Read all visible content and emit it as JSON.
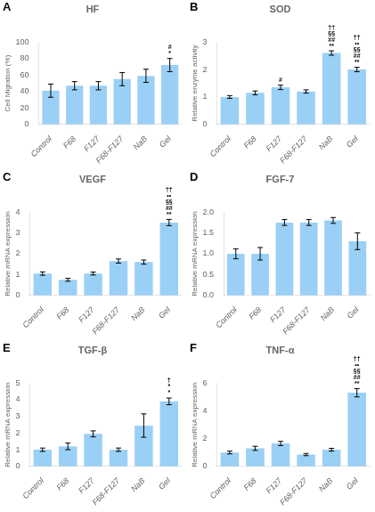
{
  "chart_data": [
    {
      "type": "bar",
      "panel_label": "A",
      "title": "HF",
      "ylabel": "Cell Migration (%)",
      "categories": [
        "Control",
        "F68",
        "F127",
        "F68-F127",
        "NaB",
        "Gel"
      ],
      "values": [
        41,
        47,
        47,
        55,
        59,
        72
      ],
      "errors": [
        8,
        5,
        5,
        8,
        8,
        8
      ],
      "ylim": [
        0,
        100
      ],
      "yticks": [
        0,
        20,
        40,
        60,
        80,
        100
      ],
      "grid": false,
      "annotations": [
        {
          "category": "Gel",
          "text": "#\n*"
        }
      ]
    },
    {
      "type": "bar",
      "panel_label": "B",
      "title": "SOD",
      "ylabel": "Relative enzyme activity",
      "categories": [
        "Control",
        "F68",
        "F127",
        "F68-F127",
        "NaB",
        "Gel"
      ],
      "values": [
        1.0,
        1.15,
        1.35,
        1.2,
        2.6,
        2.0
      ],
      "errors": [
        0.05,
        0.07,
        0.08,
        0.06,
        0.08,
        0.08
      ],
      "ylim": [
        0,
        3
      ],
      "yticks": [
        0,
        1,
        2,
        3
      ],
      "grid": false,
      "annotations": [
        {
          "category": "F127",
          "text": "#"
        },
        {
          "category": "NaB",
          "text": "††\n§§\n##\n**"
        },
        {
          "category": "Gel",
          "text": "††\n••\n§§\n##\n**"
        }
      ]
    },
    {
      "type": "bar",
      "panel_label": "C",
      "title": "VEGF",
      "ylabel": "Relative mRNA expression",
      "categories": [
        "Control",
        "F68",
        "F127",
        "F68-F127",
        "NaB",
        "Gel"
      ],
      "values": [
        1.05,
        0.75,
        1.05,
        1.65,
        1.6,
        3.5
      ],
      "errors": [
        0.08,
        0.07,
        0.07,
        0.1,
        0.1,
        0.15
      ],
      "ylim": [
        0,
        4
      ],
      "yticks": [
        0,
        1,
        2,
        3,
        4
      ],
      "grid": false,
      "annotations": [
        {
          "category": "Gel",
          "text": "††\n••\n§§\n##\n**"
        }
      ]
    },
    {
      "type": "bar",
      "panel_label": "D",
      "title": "FGF-7",
      "ylabel": "Relative mRNA expression",
      "categories": [
        "Control",
        "F68",
        "F127",
        "F68-F127",
        "NaB",
        "Gel"
      ],
      "values": [
        1.0,
        1.0,
        1.75,
        1.75,
        1.8,
        1.3
      ],
      "errors": [
        0.12,
        0.15,
        0.07,
        0.07,
        0.07,
        0.2
      ],
      "ylim": [
        0,
        2.0
      ],
      "yticks": [
        {
          "value": 0,
          "label": "0.0"
        },
        0.5,
        {
          "value": 1,
          "label": "1.0"
        },
        1.5,
        {
          "value": 2,
          "label": "2.0"
        }
      ],
      "grid": false,
      "annotations": []
    },
    {
      "type": "bar",
      "panel_label": "E",
      "title": "TGF-β",
      "ylabel": "Relative mRNA expression",
      "categories": [
        "Control",
        "F68",
        "F127",
        "F68-F127",
        "NaB",
        "Gel"
      ],
      "values": [
        1.0,
        1.2,
        1.95,
        1.0,
        2.45,
        3.9
      ],
      "errors": [
        0.1,
        0.2,
        0.18,
        0.1,
        0.7,
        0.2
      ],
      "ylim": [
        0,
        5
      ],
      "yticks": [
        0,
        1,
        2,
        3,
        4,
        5
      ],
      "grid": false,
      "annotations": [
        {
          "category": "Gel",
          "text": "†\n*\n*"
        }
      ]
    },
    {
      "type": "bar",
      "panel_label": "F",
      "title": "TNF-α",
      "ylabel": "Relative mRNA expression",
      "categories": [
        "Control",
        "F68",
        "F127",
        "F68-F127",
        "NaB",
        "Gel"
      ],
      "values": [
        1.0,
        1.3,
        1.65,
        0.85,
        1.2,
        5.3
      ],
      "errors": [
        0.1,
        0.15,
        0.15,
        0.08,
        0.1,
        0.3
      ],
      "ylim": [
        0,
        6
      ],
      "yticks": [
        0,
        2,
        4,
        6
      ],
      "grid": false,
      "annotations": [
        {
          "category": "Gel",
          "text": "††\n••\n§§\n##\n**"
        }
      ]
    }
  ]
}
